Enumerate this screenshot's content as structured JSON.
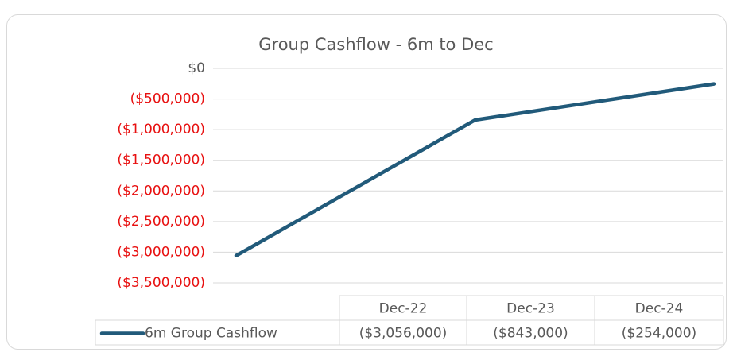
{
  "chart_data": {
    "type": "line",
    "title": "Group Cashflow - 6m to Dec",
    "categories": [
      "Dec-22",
      "Dec-23",
      "Dec-24"
    ],
    "series": [
      {
        "name": "6m Group Cashflow",
        "color": "#215a7a",
        "values": [
          -3056000,
          -843000,
          -254000
        ],
        "value_labels": [
          "($3,056,000)",
          "($843,000)",
          "($254,000)"
        ]
      }
    ],
    "ylim": [
      -3500000,
      0
    ],
    "yticks": [
      {
        "value": 0,
        "label": "$0"
      },
      {
        "value": -500000,
        "label": "($500,000)"
      },
      {
        "value": -1000000,
        "label": "($1,000,000)"
      },
      {
        "value": -1500000,
        "label": "($1,500,000)"
      },
      {
        "value": -2000000,
        "label": "($2,000,000)"
      },
      {
        "value": -2500000,
        "label": "($2,500,000)"
      },
      {
        "value": -3000000,
        "label": "($3,000,000)"
      },
      {
        "value": -3500000,
        "label": "($3,500,000)"
      }
    ],
    "grid": true,
    "negative_tick_color": "#e81010",
    "data_table": true
  }
}
